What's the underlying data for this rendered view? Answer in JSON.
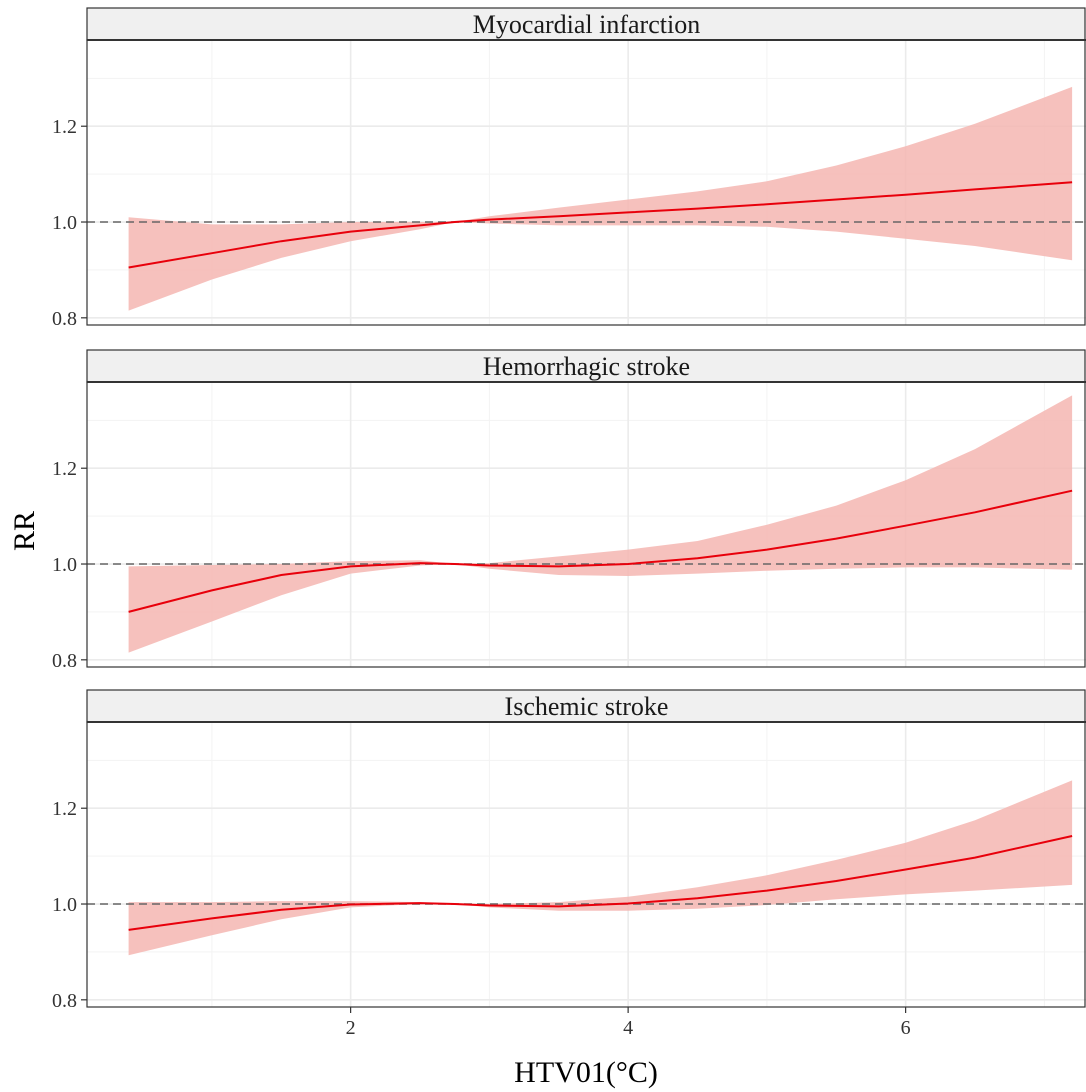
{
  "chart_data": {
    "type": "line",
    "title": "",
    "xlabel": "HTV01(°C)",
    "ylabel": "RR",
    "xlim": [
      0.1,
      7.3
    ],
    "ylim": [
      0.785,
      1.38
    ],
    "x_ticks": [
      2,
      4,
      6
    ],
    "y_ticks": [
      0.8,
      1.0,
      1.2
    ],
    "y_tick_labels": [
      "0.8",
      "1.0",
      "1.2"
    ],
    "x_tick_labels": [
      "2",
      "4",
      "6"
    ],
    "reference_line": 1.0,
    "grid": true,
    "colors": {
      "line": "#e8000b",
      "band": "#f4b6b2",
      "reference": "#666666",
      "strip_bg": "#f0f0f0",
      "grid": "#ebebeb"
    },
    "panels": [
      {
        "name": "Myocardial infarction",
        "x": [
          0.4,
          1.0,
          1.5,
          2.0,
          2.5,
          2.75,
          3.0,
          3.5,
          4.0,
          4.5,
          5.0,
          5.5,
          6.0,
          6.5,
          7.2
        ],
        "y": [
          0.905,
          0.935,
          0.96,
          0.98,
          0.993,
          1.0,
          1.005,
          1.012,
          1.02,
          1.028,
          1.037,
          1.047,
          1.057,
          1.068,
          1.083
        ],
        "lower": [
          0.815,
          0.88,
          0.925,
          0.96,
          0.985,
          1.0,
          0.997,
          0.993,
          0.993,
          0.993,
          0.99,
          0.98,
          0.965,
          0.95,
          0.92
        ],
        "upper": [
          1.01,
          0.995,
          0.995,
          1.0,
          1.0,
          1.0,
          1.012,
          1.03,
          1.047,
          1.064,
          1.085,
          1.118,
          1.158,
          1.205,
          1.282
        ]
      },
      {
        "name": "Hemorrhagic stroke",
        "x": [
          0.4,
          1.0,
          1.5,
          2.0,
          2.5,
          2.75,
          3.0,
          3.5,
          4.0,
          4.5,
          5.0,
          5.5,
          6.0,
          6.5,
          7.2
        ],
        "y": [
          0.9,
          0.945,
          0.977,
          0.995,
          1.002,
          1.0,
          0.997,
          0.995,
          1.0,
          1.012,
          1.03,
          1.053,
          1.08,
          1.108,
          1.153
        ],
        "lower": [
          0.815,
          0.88,
          0.935,
          0.98,
          0.997,
          1.0,
          0.99,
          0.977,
          0.975,
          0.98,
          0.986,
          0.99,
          0.993,
          0.993,
          0.988
        ],
        "upper": [
          0.995,
          0.998,
          1.0,
          1.006,
          1.008,
          1.0,
          1.002,
          1.016,
          1.03,
          1.048,
          1.082,
          1.122,
          1.175,
          1.24,
          1.352
        ]
      },
      {
        "name": "Ischemic stroke",
        "x": [
          0.4,
          1.0,
          1.5,
          2.0,
          2.5,
          2.75,
          3.0,
          3.5,
          4.0,
          4.5,
          5.0,
          5.5,
          6.0,
          6.5,
          7.2
        ],
        "y": [
          0.946,
          0.97,
          0.988,
          0.999,
          1.002,
          1.0,
          0.997,
          0.995,
          1.001,
          1.012,
          1.028,
          1.048,
          1.072,
          1.097,
          1.142
        ],
        "lower": [
          0.893,
          0.935,
          0.968,
          0.993,
          1.0,
          1.0,
          0.993,
          0.986,
          0.986,
          0.99,
          0.998,
          1.01,
          1.02,
          1.028,
          1.04
        ],
        "upper": [
          1.004,
          1.004,
          1.006,
          1.006,
          1.004,
          1.0,
          1.0,
          1.004,
          1.015,
          1.035,
          1.06,
          1.092,
          1.128,
          1.175,
          1.258
        ]
      }
    ]
  }
}
